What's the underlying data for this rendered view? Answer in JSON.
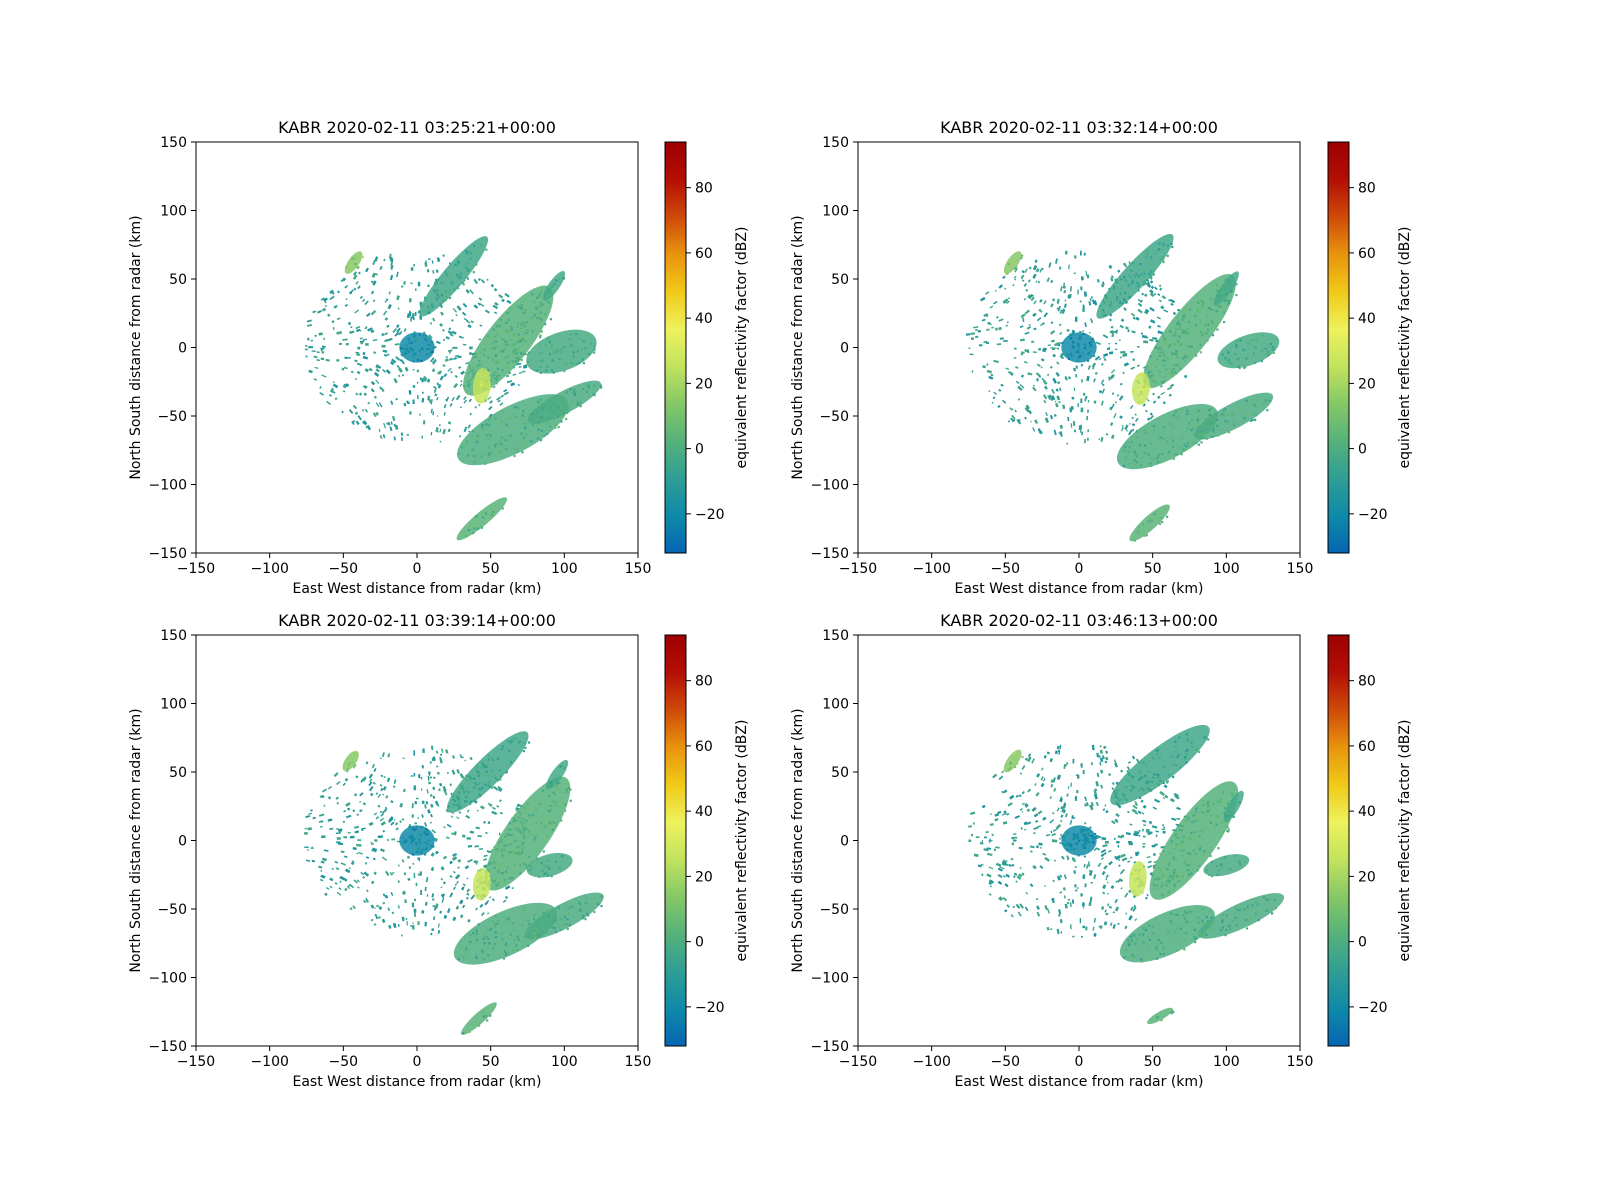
{
  "figure": {
    "background": "#ffffff"
  },
  "colormap": {
    "name": "pyart_HomeyerRainbow",
    "stops": [
      "#0565b3",
      "#0f8aa8",
      "#2f9e95",
      "#56b27a",
      "#86c866",
      "#c2e35e",
      "#eef25c",
      "#f0c918",
      "#e8930e",
      "#cf4a09",
      "#b40e05",
      "#9c0000"
    ],
    "range": [
      -32,
      94
    ]
  },
  "chart_data": [
    {
      "type": "heatmap",
      "title": "KABR 2020-02-11 03:25:21+00:00",
      "xlabel": "East West distance from radar (km)",
      "ylabel": "North South distance from radar (km)",
      "xlim": [
        -150,
        150
      ],
      "ylim": [
        -150,
        150
      ],
      "xticks": [
        "−150",
        "−100",
        "−50",
        "0",
        "50",
        "100",
        "150"
      ],
      "yticks": [
        "−150",
        "−100",
        "−50",
        "0",
        "50",
        "100",
        "150"
      ],
      "colorbar": {
        "label": "equivalent reflectivity factor (dBZ)",
        "ticks": [
          "−20",
          "0",
          "20",
          "40",
          "60",
          "80"
        ],
        "tick_values": [
          -20,
          0,
          20,
          40,
          60,
          80
        ],
        "range": [
          -32,
          94
        ]
      },
      "echo_regions": [
        {
          "x": 0,
          "y": 0,
          "rx": 12,
          "ry": 11,
          "rot": 0,
          "dbz": -20
        },
        {
          "x": 25,
          "y": 52,
          "rx": 35,
          "ry": 8,
          "rot": 50,
          "dbz": -4
        },
        {
          "x": 62,
          "y": 5,
          "rx": 46,
          "ry": 16,
          "rot": 52,
          "dbz": 2
        },
        {
          "x": 93,
          "y": 45,
          "rx": 12,
          "ry": 4,
          "rot": 55,
          "dbz": -3
        },
        {
          "x": 98,
          "y": -3,
          "rx": 25,
          "ry": 14,
          "rot": 20,
          "dbz": -2
        },
        {
          "x": 65,
          "y": -60,
          "rx": 42,
          "ry": 17,
          "rot": 28,
          "dbz": 0
        },
        {
          "x": 100,
          "y": -40,
          "rx": 28,
          "ry": 8,
          "rot": 28,
          "dbz": -1
        },
        {
          "x": 44,
          "y": -125,
          "rx": 22,
          "ry": 5,
          "rot": 40,
          "dbz": 3
        },
        {
          "x": -43,
          "y": 62,
          "rx": 9,
          "ry": 4,
          "rot": 55,
          "dbz": 14
        },
        {
          "x": 44,
          "y": -28,
          "rx": 6,
          "ry": 13,
          "rot": -5,
          "dbz": 26
        }
      ],
      "scatter_extent_km": 75,
      "scatter_dbz": -9
    },
    {
      "type": "heatmap",
      "title": "KABR 2020-02-11 03:32:14+00:00",
      "xlabel": "East West distance from radar (km)",
      "ylabel": "North South distance from radar (km)",
      "xlim": [
        -150,
        150
      ],
      "ylim": [
        -150,
        150
      ],
      "xticks": [
        "−150",
        "−100",
        "−50",
        "0",
        "50",
        "100",
        "150"
      ],
      "yticks": [
        "−150",
        "−100",
        "−50",
        "0",
        "50",
        "100",
        "150"
      ],
      "colorbar": {
        "label": "equivalent reflectivity factor (dBZ)",
        "ticks": [
          "−20",
          "0",
          "20",
          "40",
          "60",
          "80"
        ],
        "tick_values": [
          -20,
          0,
          20,
          40,
          60,
          80
        ],
        "range": [
          -32,
          94
        ]
      },
      "echo_regions": [
        {
          "x": 0,
          "y": 0,
          "rx": 12,
          "ry": 11,
          "rot": 0,
          "dbz": -20
        },
        {
          "x": 38,
          "y": 52,
          "rx": 38,
          "ry": 9,
          "rot": 48,
          "dbz": -4
        },
        {
          "x": 75,
          "y": 12,
          "rx": 48,
          "ry": 15,
          "rot": 52,
          "dbz": 2
        },
        {
          "x": 100,
          "y": 43,
          "rx": 14,
          "ry": 4,
          "rot": 55,
          "dbz": -3
        },
        {
          "x": 115,
          "y": -2,
          "rx": 22,
          "ry": 11,
          "rot": 20,
          "dbz": -2
        },
        {
          "x": 60,
          "y": -65,
          "rx": 38,
          "ry": 16,
          "rot": 28,
          "dbz": 0
        },
        {
          "x": 105,
          "y": -50,
          "rx": 30,
          "ry": 9,
          "rot": 28,
          "dbz": -1
        },
        {
          "x": 48,
          "y": -128,
          "rx": 18,
          "ry": 5,
          "rot": 42,
          "dbz": 3
        },
        {
          "x": -45,
          "y": 62,
          "rx": 9,
          "ry": 4,
          "rot": 55,
          "dbz": 14
        },
        {
          "x": 42,
          "y": -30,
          "rx": 6,
          "ry": 12,
          "rot": -5,
          "dbz": 26
        }
      ],
      "scatter_extent_km": 75,
      "scatter_dbz": -9
    },
    {
      "type": "heatmap",
      "title": "KABR 2020-02-11 03:39:14+00:00",
      "xlabel": "East West distance from radar (km)",
      "ylabel": "North South distance from radar (km)",
      "xlim": [
        -150,
        150
      ],
      "ylim": [
        -150,
        150
      ],
      "xticks": [
        "−150",
        "−100",
        "−50",
        "0",
        "50",
        "100",
        "150"
      ],
      "yticks": [
        "−150",
        "−100",
        "−50",
        "0",
        "50",
        "100",
        "150"
      ],
      "colorbar": {
        "label": "equivalent reflectivity factor (dBZ)",
        "ticks": [
          "−20",
          "0",
          "20",
          "40",
          "60",
          "80"
        ],
        "tick_values": [
          -20,
          0,
          20,
          40,
          60,
          80
        ],
        "range": [
          -32,
          94
        ]
      },
      "echo_regions": [
        {
          "x": 0,
          "y": 0,
          "rx": 12,
          "ry": 11,
          "rot": 0,
          "dbz": -20
        },
        {
          "x": 48,
          "y": 50,
          "rx": 38,
          "ry": 10,
          "rot": 45,
          "dbz": -4
        },
        {
          "x": 75,
          "y": 5,
          "rx": 46,
          "ry": 16,
          "rot": 55,
          "dbz": 2
        },
        {
          "x": 95,
          "y": 48,
          "rx": 12,
          "ry": 4,
          "rot": 55,
          "dbz": -3
        },
        {
          "x": 90,
          "y": -18,
          "rx": 16,
          "ry": 8,
          "rot": 15,
          "dbz": -2
        },
        {
          "x": 60,
          "y": -68,
          "rx": 38,
          "ry": 16,
          "rot": 25,
          "dbz": 0
        },
        {
          "x": 100,
          "y": -55,
          "rx": 30,
          "ry": 9,
          "rot": 28,
          "dbz": -1
        },
        {
          "x": 42,
          "y": -130,
          "rx": 16,
          "ry": 4,
          "rot": 42,
          "dbz": 3
        },
        {
          "x": -45,
          "y": 58,
          "rx": 8,
          "ry": 4,
          "rot": 55,
          "dbz": 14
        },
        {
          "x": 44,
          "y": -32,
          "rx": 6,
          "ry": 12,
          "rot": -5,
          "dbz": 26
        }
      ],
      "scatter_extent_km": 75,
      "scatter_dbz": -9
    },
    {
      "type": "heatmap",
      "title": "KABR 2020-02-11 03:46:13+00:00",
      "xlabel": "East West distance from radar (km)",
      "ylabel": "North South distance from radar (km)",
      "xlim": [
        -150,
        150
      ],
      "ylim": [
        -150,
        150
      ],
      "xticks": [
        "−150",
        "−100",
        "−50",
        "0",
        "50",
        "100",
        "150"
      ],
      "yticks": [
        "−150",
        "−100",
        "−50",
        "0",
        "50",
        "100",
        "150"
      ],
      "colorbar": {
        "label": "equivalent reflectivity factor (dBZ)",
        "ticks": [
          "−20",
          "0",
          "20",
          "40",
          "60",
          "80"
        ],
        "tick_values": [
          -20,
          0,
          20,
          40,
          60,
          80
        ],
        "range": [
          -32,
          94
        ]
      },
      "echo_regions": [
        {
          "x": 0,
          "y": 0,
          "rx": 12,
          "ry": 11,
          "rot": 0,
          "dbz": -20
        },
        {
          "x": 55,
          "y": 55,
          "rx": 42,
          "ry": 12,
          "rot": 38,
          "dbz": -4
        },
        {
          "x": 78,
          "y": 0,
          "rx": 48,
          "ry": 16,
          "rot": 55,
          "dbz": 2
        },
        {
          "x": 105,
          "y": 25,
          "rx": 12,
          "ry": 4,
          "rot": 60,
          "dbz": -3
        },
        {
          "x": 100,
          "y": -18,
          "rx": 16,
          "ry": 7,
          "rot": 15,
          "dbz": -2
        },
        {
          "x": 60,
          "y": -68,
          "rx": 35,
          "ry": 15,
          "rot": 25,
          "dbz": 0
        },
        {
          "x": 110,
          "y": -55,
          "rx": 32,
          "ry": 9,
          "rot": 25,
          "dbz": -1
        },
        {
          "x": 55,
          "y": -128,
          "rx": 10,
          "ry": 3,
          "rot": 30,
          "dbz": 3
        },
        {
          "x": -45,
          "y": 58,
          "rx": 9,
          "ry": 4,
          "rot": 55,
          "dbz": 14
        },
        {
          "x": 40,
          "y": -28,
          "rx": 6,
          "ry": 13,
          "rot": -5,
          "dbz": 26
        }
      ],
      "scatter_extent_km": 75,
      "scatter_dbz": -9
    }
  ]
}
